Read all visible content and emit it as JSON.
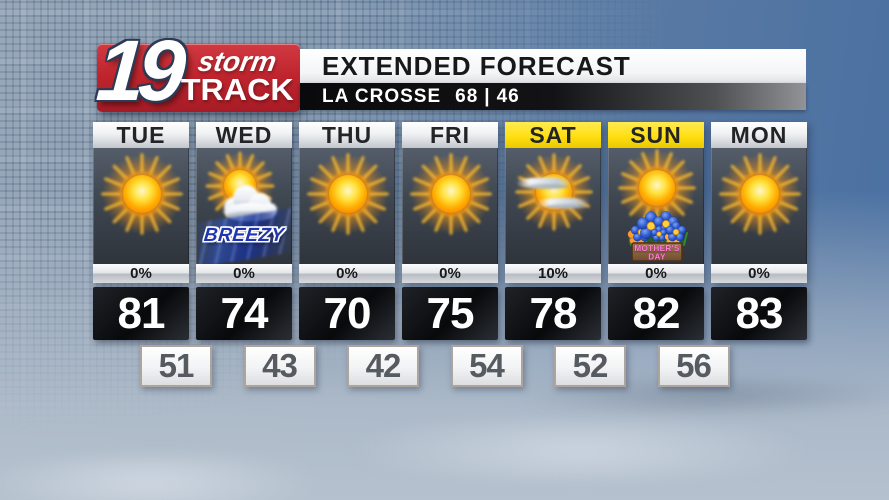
{
  "branding": {
    "channel": "19",
    "storm_word": "storm",
    "track_word": "TRACK"
  },
  "header": {
    "title": "EXTENDED FORECAST",
    "location": "LA CROSSE",
    "today_high": "68",
    "separator": "|",
    "today_low": "46"
  },
  "forecast": {
    "days": [
      {
        "label": "TUE",
        "icon": "sunny",
        "precip": "0%",
        "high": "81",
        "highlight": false,
        "badge": ""
      },
      {
        "label": "WED",
        "icon": "sunny-cloud-breezy",
        "precip": "0%",
        "high": "74",
        "highlight": false,
        "badge": "BREEZY"
      },
      {
        "label": "THU",
        "icon": "sunny",
        "precip": "0%",
        "high": "70",
        "highlight": false,
        "badge": ""
      },
      {
        "label": "FRI",
        "icon": "sunny",
        "precip": "0%",
        "high": "75",
        "highlight": false,
        "badge": ""
      },
      {
        "label": "SAT",
        "icon": "partly-cloudy",
        "precip": "10%",
        "high": "78",
        "highlight": true,
        "badge": ""
      },
      {
        "label": "SUN",
        "icon": "sunny-mothers-day",
        "precip": "0%",
        "high": "82",
        "highlight": true,
        "badge": "MOTHER'S DAY"
      },
      {
        "label": "MON",
        "icon": "sunny",
        "precip": "0%",
        "high": "83",
        "highlight": false,
        "badge": ""
      }
    ],
    "lows": [
      "51",
      "43",
      "42",
      "54",
      "52",
      "56"
    ]
  },
  "colors": {
    "accent_red": "#c0252e",
    "highlight_yellow": "#ffdf12",
    "breezy_blue": "#2036b0",
    "mothers_day_pink": "#ff7fd0"
  }
}
